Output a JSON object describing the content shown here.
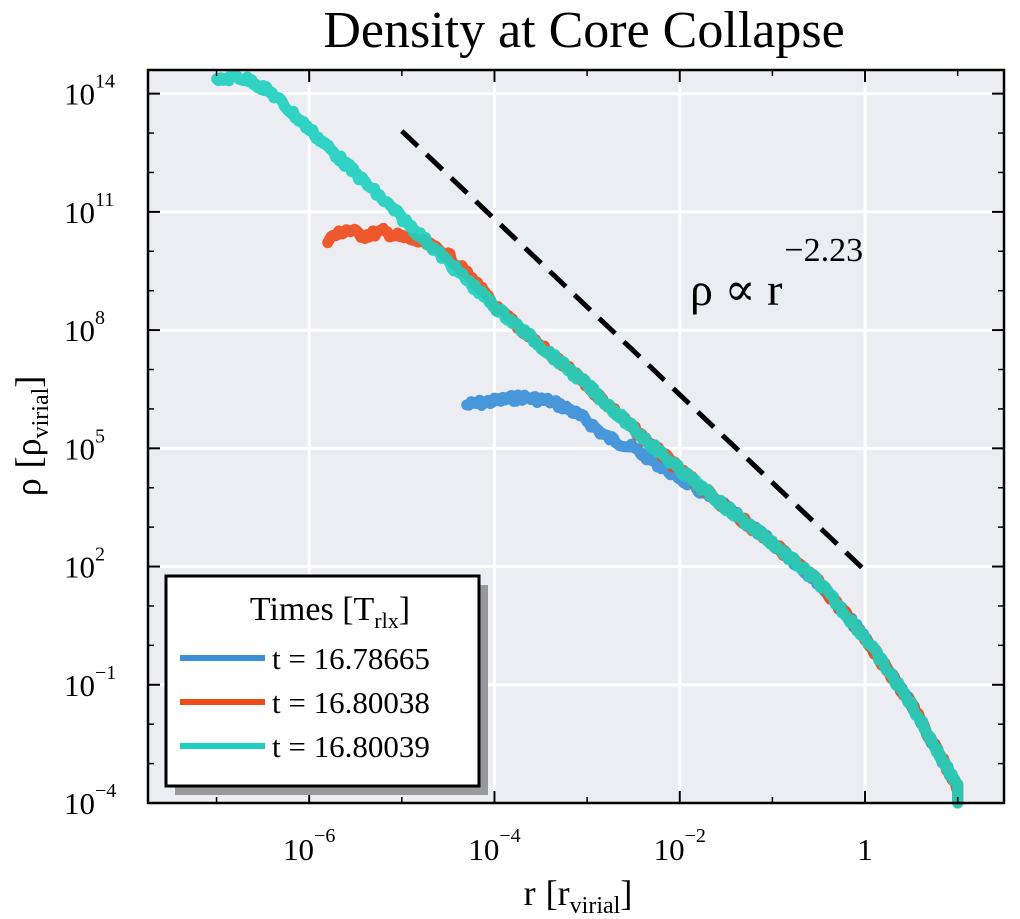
{
  "chart_data": {
    "type": "line",
    "title": "Density at Core Collapse",
    "xlabel": {
      "main": "r",
      "open": "[r",
      "sub": "virial",
      "close": "]"
    },
    "ylabel": {
      "main": "ρ",
      "open": "[ρ",
      "sub": "virial",
      "close": "]"
    },
    "xscale": "log",
    "yscale": "log",
    "xlim_log10": [
      -7.74,
      1.5
    ],
    "ylim_log10": [
      -4,
      14.6
    ],
    "grid": true,
    "x_ticks": [
      {
        "log10": -6,
        "base": "10",
        "exp": "−6"
      },
      {
        "log10": -4,
        "base": "10",
        "exp": "−4"
      },
      {
        "log10": -2,
        "base": "10",
        "exp": "−2"
      },
      {
        "log10": 0,
        "base": "1",
        "exp": ""
      }
    ],
    "y_ticks": [
      {
        "log10": 14,
        "base": "10",
        "exp": "14"
      },
      {
        "log10": 11,
        "base": "10",
        "exp": "11"
      },
      {
        "log10": 8,
        "base": "10",
        "exp": "8"
      },
      {
        "log10": 5,
        "base": "10",
        "exp": "5"
      },
      {
        "log10": 2,
        "base": "10",
        "exp": "2"
      },
      {
        "log10": -1,
        "base": "10",
        "exp": "−1"
      },
      {
        "log10": -4,
        "base": "10",
        "exp": "−4"
      }
    ],
    "legend": {
      "placement": "lower-left",
      "title": {
        "main": "Times [T",
        "sub": "rlx",
        "close": "]"
      }
    },
    "series": [
      {
        "name": "t = 16.78665",
        "color": "#3a8fd9",
        "x_log10": [
          -4.3,
          -4.0,
          -3.7,
          -3.4,
          -3.2,
          -3.0,
          -2.8,
          -2.5,
          -2.0,
          -1.5,
          -1.0,
          -0.5,
          0.0,
          0.5,
          1.0,
          1.0
        ],
        "y_log10": [
          6.1,
          6.2,
          6.3,
          6.2,
          6.0,
          5.7,
          5.3,
          5.0,
          4.25,
          3.5,
          2.6,
          1.6,
          0.2,
          -1.5,
          -3.6,
          -4.0
        ]
      },
      {
        "name": "t = 16.80038",
        "color": "#ee4b1b",
        "x_log10": [
          -5.8,
          -5.6,
          -5.4,
          -5.2,
          -5.0,
          -4.8,
          -4.5,
          -4.2,
          -4.0,
          -3.5,
          -3.0,
          -2.5,
          -2.0,
          -1.5,
          -1.0,
          -0.5,
          0.0,
          0.5,
          1.0,
          1.0
        ],
        "y_log10": [
          10.3,
          10.55,
          10.4,
          10.5,
          10.35,
          10.25,
          9.9,
          9.2,
          8.6,
          7.6,
          6.6,
          5.5,
          4.45,
          3.5,
          2.6,
          1.6,
          0.2,
          -1.5,
          -3.6,
          -4.0
        ]
      },
      {
        "name": "t = 16.80039",
        "color": "#1ecfbf",
        "x_log10": [
          -7.0,
          -6.8,
          -6.6,
          -6.4,
          -6.0,
          -5.6,
          -5.2,
          -4.8,
          -4.4,
          -4.0,
          -3.5,
          -3.0,
          -2.5,
          -2.0,
          -1.5,
          -1.0,
          -0.5,
          0.0,
          0.5,
          1.0,
          1.0
        ],
        "y_log10": [
          14.3,
          14.45,
          14.3,
          14.0,
          13.1,
          12.2,
          11.3,
          10.4,
          9.5,
          8.6,
          7.6,
          6.6,
          5.5,
          4.45,
          3.5,
          2.6,
          1.6,
          0.2,
          -1.5,
          -3.6,
          -4.0
        ]
      }
    ],
    "reference_line": {
      "style": "dashed",
      "color": "#000000",
      "slope": -2.23,
      "x_log10": [
        -5,
        0
      ],
      "y_log10": [
        13.05,
        1.9
      ]
    },
    "annotation": {
      "main": "ρ ∝ r",
      "exp": "−2.23"
    }
  }
}
